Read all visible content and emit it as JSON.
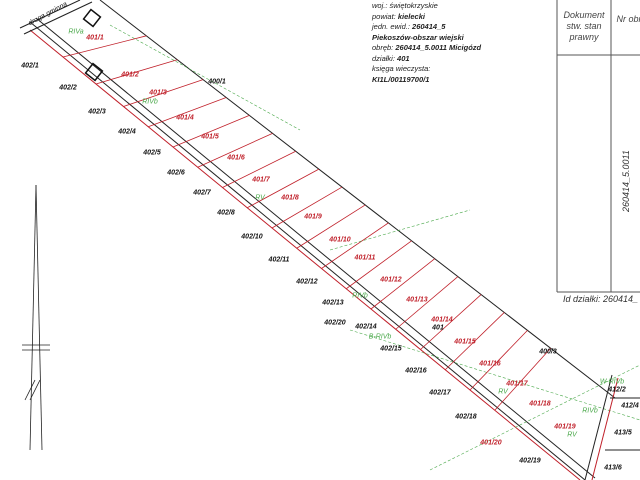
{
  "info": {
    "woj": "woj.: świętokrzyskie",
    "powiat_label": "powiat:",
    "powiat": "kielecki",
    "jedn_label": "jedn. ewid.:",
    "jedn": "260414_5",
    "gmina": "Piekoszów-obszar wiejski",
    "obreb_label": "obręb:",
    "obreb": "260414_5.0011 Micigózd",
    "dzialki_label": "działki:",
    "dzialki": "401",
    "kw_label": "księga wieczysta:",
    "kw": "KI1L/00119700/1"
  },
  "table": {
    "col1_header": "Dokument stw. stan prawny",
    "col2_header": "Nr obręb",
    "obreb_value": "260414_5.0011",
    "id_dzialki": "Id działki: 260414_"
  },
  "parcels": [
    "401/1",
    "401/2",
    "401/3",
    "401/4",
    "401/5",
    "401/6",
    "401/7",
    "401/8",
    "401/9",
    "401/10",
    "401/11",
    "401/12",
    "401/13",
    "401/14",
    "401/15",
    "401/16",
    "401/17",
    "401/18",
    "401/19",
    "401/20"
  ],
  "neighbors": [
    "402/1",
    "402/2",
    "402/3",
    "402/4",
    "402/5",
    "402/6",
    "402/7",
    "402/8",
    "402/10",
    "402/11",
    "402/12",
    "402/13",
    "402/20",
    "402/14",
    "402/15",
    "402/16",
    "402/17",
    "402/18",
    "402/19",
    "400/1",
    "400/3",
    "401",
    "412/2",
    "412/4",
    "413/5",
    "413/6"
  ],
  "landuse": [
    "RIVa",
    "RIVb",
    "RV",
    "RIVb",
    "RV",
    "RV",
    "W-RIVb",
    "RIVb",
    "B-RIVb"
  ],
  "road_label": "droga gminna",
  "colors": {
    "parcel_line": "#c0202a",
    "landuse": "#4aa84a",
    "boundary": "#222222"
  }
}
